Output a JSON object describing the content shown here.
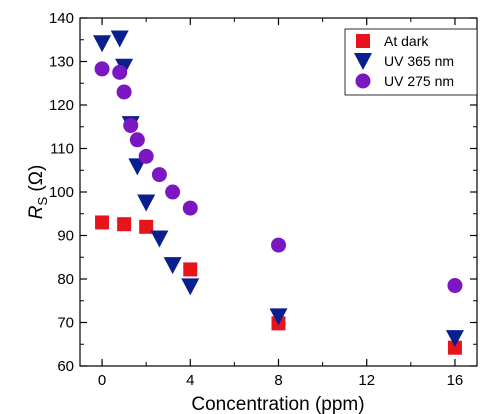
{
  "chart_data": {
    "type": "scatter",
    "xlabel": "Concentration (ppm)",
    "ylabel": {
      "main": "R",
      "sub": "S",
      "unit": " (Ω)"
    },
    "xlim": [
      -1,
      17
    ],
    "ylim": [
      60,
      140
    ],
    "xticks": [
      0,
      4,
      8,
      12,
      16
    ],
    "yticks": [
      60,
      70,
      80,
      90,
      100,
      110,
      120,
      130,
      140
    ],
    "grid": false,
    "legend_position": "top-right",
    "series": [
      {
        "name": "At dark",
        "marker": "square",
        "color": "#e8141b",
        "points": [
          [
            0,
            93
          ],
          [
            1,
            92.6
          ],
          [
            2,
            92
          ],
          [
            4,
            82.2
          ],
          [
            8,
            69.8
          ],
          [
            16,
            64.2
          ]
        ]
      },
      {
        "name": "UV 365 nm",
        "marker": "triangle-down",
        "color": "#0a1f8f",
        "points": [
          [
            0,
            134.2
          ],
          [
            0.8,
            135.3
          ],
          [
            1.0,
            128.8
          ],
          [
            1.3,
            115.6
          ],
          [
            1.6,
            105.9
          ],
          [
            2.0,
            97.6
          ],
          [
            2.6,
            89.3
          ],
          [
            3.2,
            83.2
          ],
          [
            4,
            78.3
          ],
          [
            8,
            71.4
          ],
          [
            16,
            66.4
          ]
        ]
      },
      {
        "name": "UV 275 nm",
        "marker": "circle",
        "color": "#7a17c2",
        "points": [
          [
            0,
            128.3
          ],
          [
            0.8,
            127.5
          ],
          [
            1.0,
            123
          ],
          [
            1.3,
            115.3
          ],
          [
            1.6,
            112
          ],
          [
            2.0,
            108.2
          ],
          [
            2.6,
            104
          ],
          [
            3.2,
            100
          ],
          [
            4,
            96.3
          ],
          [
            8,
            87.8
          ],
          [
            16,
            78.5
          ]
        ]
      }
    ]
  }
}
